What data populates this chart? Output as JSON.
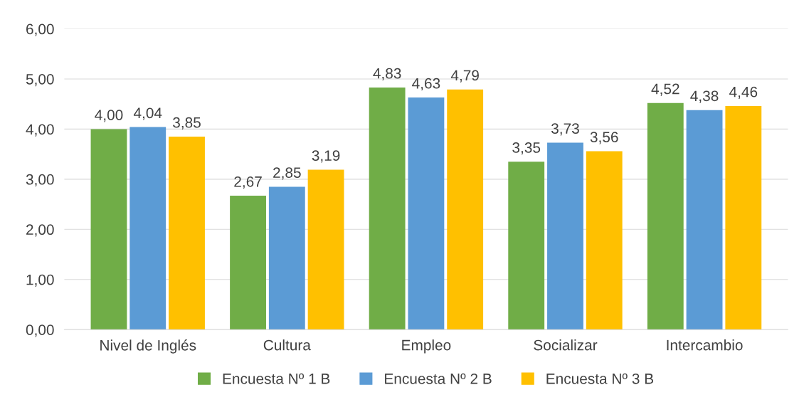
{
  "chart_data": {
    "type": "bar",
    "categories": [
      "Nivel de Inglés",
      "Cultura",
      "Empleo",
      "Socializar",
      "Intercambio"
    ],
    "series": [
      {
        "name": "Encuesta Nº 1 B",
        "color": "#70ad47",
        "values": [
          4.0,
          2.67,
          4.83,
          3.35,
          4.52
        ],
        "value_labels": [
          "4,00",
          "2,67",
          "4,83",
          "3,35",
          "4,52"
        ]
      },
      {
        "name": "Encuesta Nº 2 B",
        "color": "#5b9bd5",
        "values": [
          4.04,
          2.85,
          4.63,
          3.73,
          4.38
        ],
        "value_labels": [
          "4,04",
          "2,85",
          "4,63",
          "3,73",
          "4,38"
        ]
      },
      {
        "name": "Encuesta Nº 3 B",
        "color": "#ffc000",
        "values": [
          3.85,
          3.19,
          4.79,
          3.56,
          4.46
        ],
        "value_labels": [
          "3,85",
          "3,19",
          "4,79",
          "3,56",
          "4,46"
        ]
      }
    ],
    "ylim": [
      0,
      6
    ],
    "yticks": [
      {
        "value": 0,
        "label": "0,00"
      },
      {
        "value": 1,
        "label": "1,00"
      },
      {
        "value": 2,
        "label": "2,00"
      },
      {
        "value": 3,
        "label": "3,00"
      },
      {
        "value": 4,
        "label": "4,00"
      },
      {
        "value": 5,
        "label": "5,00"
      },
      {
        "value": 6,
        "label": "6,00"
      }
    ],
    "grid": "y",
    "legend": "bottom"
  }
}
